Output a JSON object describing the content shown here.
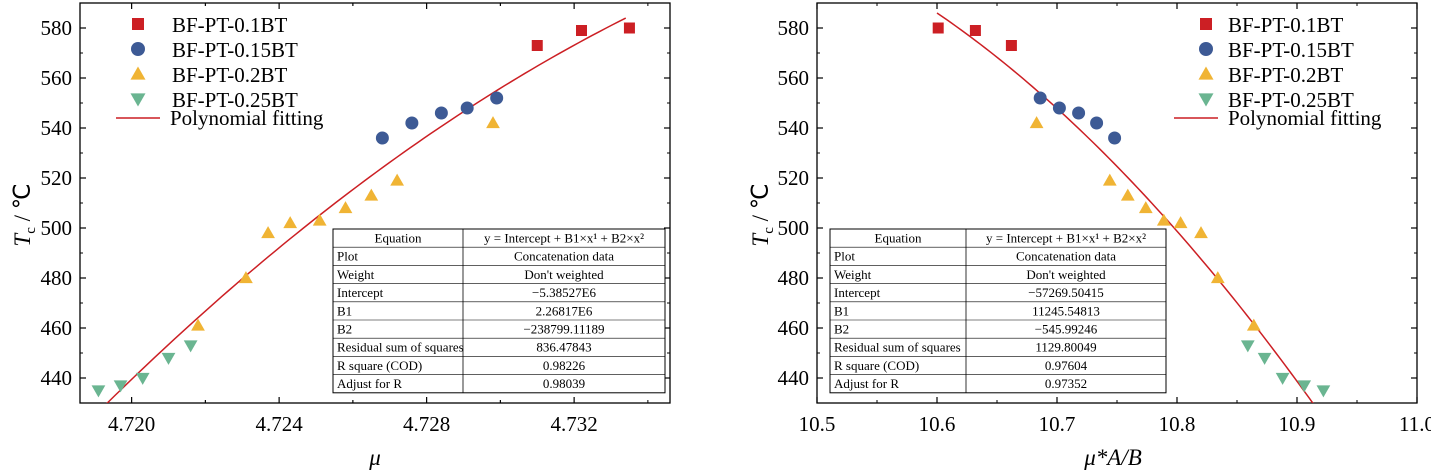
{
  "chart_data": [
    {
      "type": "scatter",
      "xlabel": "μ",
      "ylabel_main": "T",
      "ylabel_sub": "c",
      "ylabel_unit": " / ℃",
      "xlim": [
        4.7186,
        4.7346
      ],
      "ylim": [
        430,
        590
      ],
      "xticks": [
        {
          "v": 4.72,
          "label": "4.720"
        },
        {
          "v": 4.724,
          "label": "4.724"
        },
        {
          "v": 4.728,
          "label": "4.728"
        },
        {
          "v": 4.732,
          "label": "4.732"
        }
      ],
      "yticks": [
        440,
        460,
        480,
        500,
        520,
        540,
        560,
        580
      ],
      "grid": false,
      "legend_position": "top-left",
      "series": [
        {
          "name": "BF-PT-0.1BT",
          "marker": "square",
          "color": "#cc1f24",
          "x": [
            4.731,
            4.7322,
            4.7335
          ],
          "y": [
            573,
            579,
            580
          ]
        },
        {
          "name": "BF-PT-0.15BT",
          "marker": "circle",
          "color": "#3d5a95",
          "x": [
            4.7268,
            4.7276,
            4.7284,
            4.7291,
            4.7299
          ],
          "y": [
            536,
            542,
            546,
            548,
            552
          ]
        },
        {
          "name": "BF-PT-0.2BT",
          "marker": "triangle-up",
          "color": "#f0b434",
          "x": [
            4.7218,
            4.7231,
            4.7237,
            4.7243,
            4.7251,
            4.7258,
            4.7265,
            4.7272,
            4.7298
          ],
          "y": [
            461,
            480,
            498,
            502,
            503,
            508,
            513,
            519,
            542
          ]
        },
        {
          "name": "BF-PT-0.25BT",
          "marker": "triangle-down",
          "color": "#6ab591",
          "x": [
            4.7191,
            4.7197,
            4.7203,
            4.721,
            4.7216
          ],
          "y": [
            435,
            437,
            440,
            448,
            453
          ]
        }
      ],
      "fit": {
        "name": "Polynomial fitting",
        "color": "#cc1f24",
        "x": [
          4.7188,
          4.7334
        ]
      },
      "table": {
        "headers": [
          "Equation",
          "y = Intercept + B1×x¹ + B2×x²"
        ],
        "rows": [
          [
            "Plot",
            "Concatenation data"
          ],
          [
            "Weight",
            "Don't weighted"
          ],
          [
            "Intercept",
            "−5.38527E6"
          ],
          [
            "B1",
            "2.26817E6"
          ],
          [
            "B2",
            "−238799.11189"
          ],
          [
            "Residual sum of squares",
            "836.47843"
          ],
          [
            "R square (COD)",
            "0.98226"
          ],
          [
            "Adjust for R",
            "0.98039"
          ]
        ]
      }
    },
    {
      "type": "scatter",
      "xlabel": "μ*A/B",
      "ylabel_main": "T",
      "ylabel_sub": "c",
      "ylabel_unit": " / ℃",
      "xlim": [
        10.5,
        11.0
      ],
      "ylim": [
        430,
        590
      ],
      "xticks": [
        {
          "v": 10.5,
          "label": "10.5"
        },
        {
          "v": 10.6,
          "label": "10.6"
        },
        {
          "v": 10.7,
          "label": "10.7"
        },
        {
          "v": 10.8,
          "label": "10.8"
        },
        {
          "v": 10.9,
          "label": "10.9"
        },
        {
          "v": 11.0,
          "label": "11.0"
        }
      ],
      "yticks": [
        440,
        460,
        480,
        500,
        520,
        540,
        560,
        580
      ],
      "grid": false,
      "legend_position": "top-right",
      "series": [
        {
          "name": "BF-PT-0.1BT",
          "marker": "square",
          "color": "#cc1f24",
          "x": [
            10.601,
            10.632,
            10.662
          ],
          "y": [
            580,
            579,
            573
          ]
        },
        {
          "name": "BF-PT-0.15BT",
          "marker": "circle",
          "color": "#3d5a95",
          "x": [
            10.686,
            10.702,
            10.718,
            10.733,
            10.748
          ],
          "y": [
            552,
            548,
            546,
            542,
            536
          ]
        },
        {
          "name": "BF-PT-0.2BT",
          "marker": "triangle-up",
          "color": "#f0b434",
          "x": [
            10.683,
            10.744,
            10.759,
            10.774,
            10.789,
            10.803,
            10.82,
            10.834,
            10.864
          ],
          "y": [
            542,
            519,
            513,
            508,
            503,
            502,
            498,
            480,
            461
          ]
        },
        {
          "name": "BF-PT-0.25BT",
          "marker": "triangle-down",
          "color": "#6ab591",
          "x": [
            10.859,
            10.873,
            10.888,
            10.906,
            10.922
          ],
          "y": [
            453,
            448,
            440,
            437,
            435
          ]
        }
      ],
      "fit": {
        "name": "Polynomial fitting",
        "color": "#cc1f24",
        "x": [
          10.6,
          10.918
        ]
      },
      "table": {
        "headers": [
          "Equation",
          "y = Intercept + B1×x¹ + B2×x²"
        ],
        "rows": [
          [
            "Plot",
            "Concatenation data"
          ],
          [
            "Weight",
            "Don't weighted"
          ],
          [
            "Intercept",
            "−57269.50415"
          ],
          [
            "B1",
            "11245.54813"
          ],
          [
            "B2",
            "−545.99246"
          ],
          [
            "Residual sum of squares",
            "1129.80049"
          ],
          [
            "R square (COD)",
            "0.97604"
          ],
          [
            "Adjust for R",
            "0.97352"
          ]
        ]
      }
    }
  ]
}
